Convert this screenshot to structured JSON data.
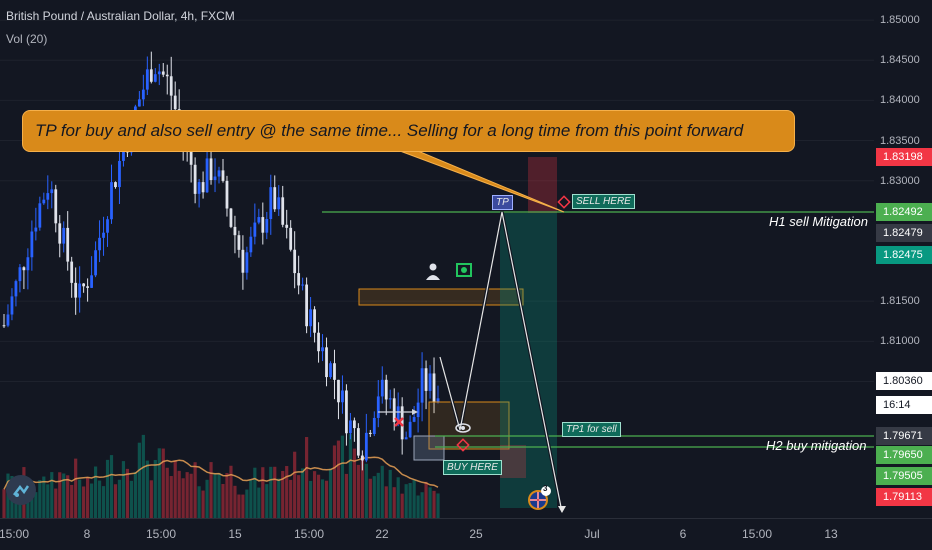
{
  "legend": {
    "symbol_title": "British Pound / Australian Dollar, 4h, FXCM",
    "indicator": "Vol (20)"
  },
  "price_axis": {
    "ticks": [
      "1.85000",
      "1.84500",
      "1.84000",
      "1.83500",
      "1.83000",
      "1.81500",
      "1.81000",
      "1.80500"
    ],
    "tags": [
      {
        "label": "1.83198",
        "color": "#f23645"
      },
      {
        "label": "1.82492",
        "color": "#4caf50"
      },
      {
        "label": "1.82479",
        "color": "#363a45"
      },
      {
        "label": "1.82475",
        "color": "#089981"
      },
      {
        "label": "1.80360",
        "color": "#ffffff"
      },
      {
        "label": "16:14",
        "color": "#ffffff"
      },
      {
        "label": "1.79671",
        "color": "#363a45"
      },
      {
        "label": "1.79650",
        "color": "#4caf50"
      },
      {
        "label": "1.79505",
        "color": "#4caf50"
      },
      {
        "label": "1.79113",
        "color": "#f23645"
      }
    ]
  },
  "time_axis": {
    "labels": [
      "15:00",
      "8",
      "15:00",
      "15",
      "15:00",
      "22",
      "25",
      "Jul",
      "6",
      "15:00",
      "13"
    ]
  },
  "annotations": {
    "callout": "TP for buy and also sell entry @ the same time... Selling for a long time from this point forward",
    "tp": "TP",
    "sell_here": "SELL HERE",
    "tp1_for_sell": "TP1 for sell",
    "buy_here": "BUY HERE",
    "h1_label": "H1 sell Mitigation",
    "h2_label": "H2 buy mitigation",
    "event_count": "3"
  },
  "colors": {
    "bull": "#2962ff",
    "bear": "#e0e3eb",
    "green_line": "#4caf50",
    "orange_box": "#d98a1a",
    "callout": "#d98a1a"
  },
  "icons": [
    "person-icon",
    "dollar-icon",
    "x-mark-icon",
    "eye-icon",
    "diamond-icon",
    "target-icon",
    "uk-flag-icon",
    "tradingview-logo-icon"
  ],
  "chart_data": {
    "type": "candlestick",
    "title": "British Pound / Australian Dollar, 4h, FXCM",
    "timeframe": "4h",
    "ylim": [
      1.788,
      1.8525
    ],
    "x_tick_labels": [
      "15:00",
      "8",
      "15:00",
      "15",
      "15:00",
      "22",
      "25",
      "Jul",
      "6",
      "15:00",
      "13"
    ],
    "y_tick_labels": [
      "1.85000",
      "1.84500",
      "1.84000",
      "1.83500",
      "1.83000",
      "1.81500",
      "1.81000",
      "1.80500"
    ],
    "last_price": 1.8036,
    "price_path": [
      1.812,
      1.818,
      1.825,
      1.83,
      1.822,
      1.815,
      1.82,
      1.828,
      1.834,
      1.84,
      1.845,
      1.842,
      1.835,
      1.829,
      1.832,
      1.826,
      1.82,
      1.824,
      1.828,
      1.822,
      1.815,
      1.81,
      1.806,
      1.8,
      1.797,
      1.804,
      1.802,
      1.798,
      1.805,
      1.8036
    ],
    "volume": [
      0.55,
      0.6,
      0.5,
      0.65,
      0.7,
      0.55,
      0.6,
      0.8,
      0.9,
      1.0,
      0.85,
      0.7,
      0.6,
      0.65,
      0.75,
      0.7,
      0.55,
      0.6,
      0.7,
      0.8,
      0.95,
      0.85,
      0.9,
      1.0,
      0.95,
      0.7,
      0.6,
      0.55,
      0.5,
      0.4
    ],
    "levels": [
      {
        "label": "H1 sell Mitigation",
        "price": 1.82492
      },
      {
        "label": "H2 buy mitigation",
        "price": 1.7965
      }
    ]
  }
}
